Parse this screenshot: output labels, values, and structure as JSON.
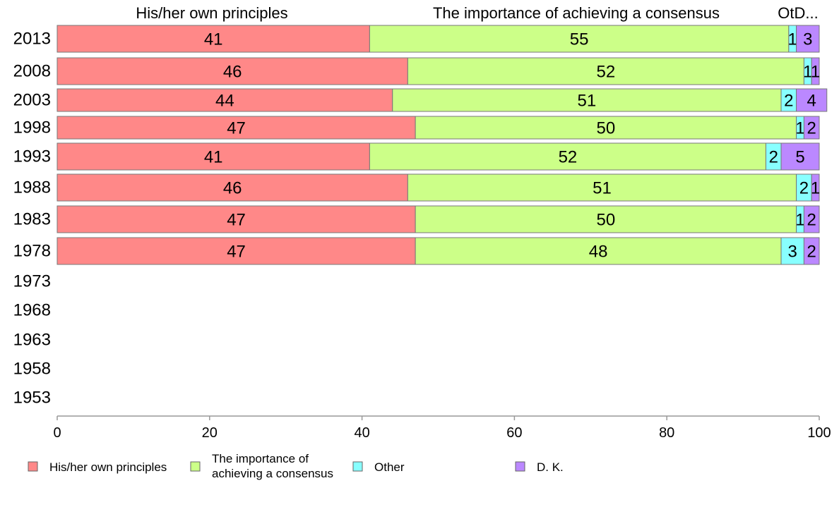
{
  "chart_data": {
    "type": "bar",
    "orientation": "horizontal",
    "stacked": true,
    "categories": [
      "2013",
      "2008",
      "2003",
      "1998",
      "1993",
      "1988",
      "1983",
      "1978",
      "1973",
      "1968",
      "1963",
      "1958",
      "1953"
    ],
    "series": [
      {
        "name": "His/her own principles",
        "color": "#ff8888",
        "values": [
          41,
          46,
          44,
          47,
          41,
          46,
          47,
          47,
          null,
          null,
          null,
          null,
          null
        ]
      },
      {
        "name": "The importance of achieving a consensus",
        "color": "#ccff88",
        "values": [
          55,
          52,
          51,
          50,
          52,
          51,
          50,
          48,
          null,
          null,
          null,
          null,
          null
        ]
      },
      {
        "name": "Other",
        "color": "#88ffff",
        "values": [
          1,
          1,
          2,
          1,
          2,
          2,
          1,
          3,
          null,
          null,
          null,
          null,
          null
        ]
      },
      {
        "name": "D. K.",
        "color": "#bb88ff",
        "values": [
          3,
          1,
          4,
          2,
          5,
          1,
          2,
          2,
          null,
          null,
          null,
          null,
          null
        ]
      }
    ],
    "column_headers": [
      "His/her own principles",
      "The importance of achieving a consensus",
      "OtD..."
    ],
    "xticks": [
      "0",
      "20",
      "40",
      "60",
      "80",
      "100"
    ],
    "xlim": [
      0,
      100
    ],
    "legend": {
      "position": "bottom",
      "items": [
        {
          "lines": [
            "His/her own principles"
          ],
          "color": "#ff8888"
        },
        {
          "lines": [
            "The importance of",
            "achieving a consensus"
          ],
          "color": "#ccff88"
        },
        {
          "lines": [
            "Other"
          ],
          "color": "#88ffff"
        },
        {
          "lines": [
            "D. K."
          ],
          "color": "#bb88ff"
        }
      ]
    },
    "grid": false
  }
}
